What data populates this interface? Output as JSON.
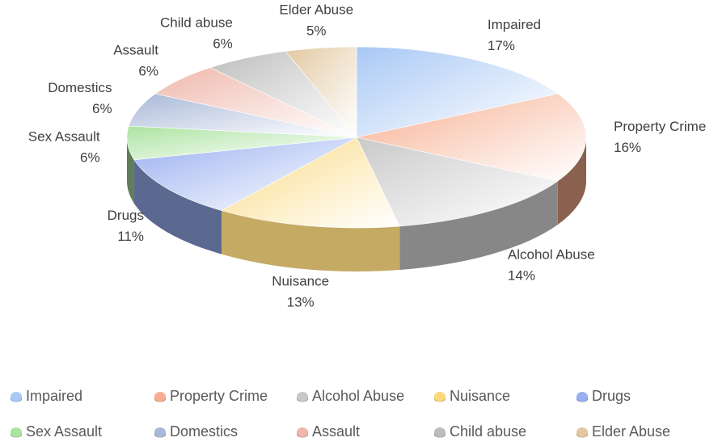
{
  "chart_data": {
    "type": "pie",
    "title": "",
    "categories": [
      "Impaired",
      "Property Crime",
      "Alcohol Abuse",
      "Nuisance",
      "Drugs",
      "Sex Assault",
      "Domestics",
      "Assault",
      "Child abuse",
      "Elder Abuse"
    ],
    "values": [
      17,
      16,
      14,
      13,
      11,
      6,
      6,
      6,
      6,
      5
    ],
    "labels": [
      "17%",
      "16%",
      "14%",
      "13%",
      "11%",
      "6%",
      "6%",
      "6%",
      "6%",
      "5%"
    ],
    "colors": [
      "#a8c8f5",
      "#f7ad8e",
      "#c9c9c9",
      "#fad97e",
      "#98aef0",
      "#abe3a0",
      "#a9b8d8",
      "#efb7ab",
      "#bdbdbd",
      "#e2c8a0"
    ],
    "legend_position": "bottom"
  }
}
